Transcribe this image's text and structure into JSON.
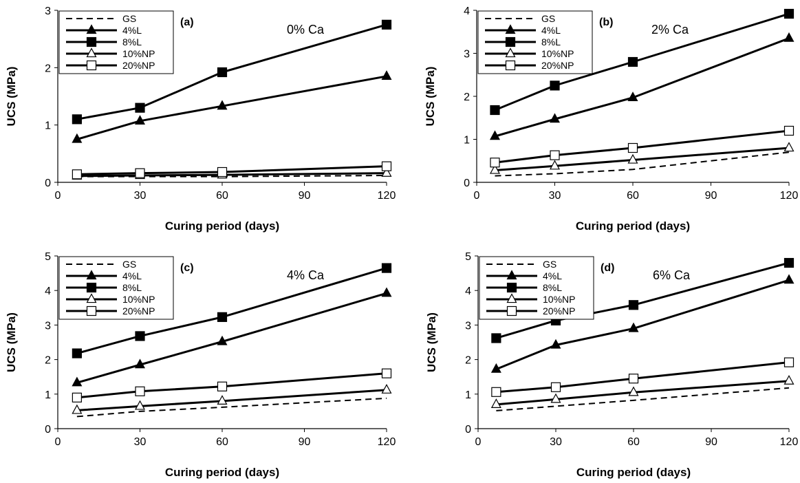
{
  "chart_data": [
    {
      "type": "line",
      "panel_label": "(a)",
      "annotation": "0% Ca",
      "xlabel": "Curing period (days)",
      "ylabel": "UCS (MPa)",
      "xlim": [
        0,
        120
      ],
      "xticks": [
        0,
        30,
        60,
        90,
        120
      ],
      "ylim": [
        0,
        3
      ],
      "yticks": [
        0,
        1,
        2,
        3
      ],
      "x": [
        7,
        30,
        60,
        120
      ],
      "series": [
        {
          "name": "GS",
          "marker": "none",
          "dash": true,
          "values": [
            0.1,
            0.1,
            0.1,
            0.12
          ]
        },
        {
          "name": "4%L",
          "marker": "triangle-filled",
          "values": [
            0.75,
            1.07,
            1.33,
            1.85
          ]
        },
        {
          "name": "8%L",
          "marker": "square-filled",
          "values": [
            1.1,
            1.3,
            1.92,
            2.75
          ]
        },
        {
          "name": "10%NP",
          "marker": "triangle-open",
          "values": [
            0.11,
            0.12,
            0.13,
            0.16
          ]
        },
        {
          "name": "20%NP",
          "marker": "square-open",
          "values": [
            0.14,
            0.16,
            0.18,
            0.28
          ]
        }
      ],
      "legend_position": "top-left"
    },
    {
      "type": "line",
      "panel_label": "(b)",
      "annotation": "2% Ca",
      "xlabel": "Curing period (days)",
      "ylabel": "UCS (MPa)",
      "xlim": [
        0,
        120
      ],
      "xticks": [
        0,
        30,
        60,
        90,
        120
      ],
      "ylim": [
        0,
        4
      ],
      "yticks": [
        0,
        1,
        2,
        3,
        4
      ],
      "x": [
        7,
        30,
        60,
        120
      ],
      "series": [
        {
          "name": "GS",
          "marker": "none",
          "dash": true,
          "values": [
            0.15,
            0.2,
            0.3,
            0.7
          ]
        },
        {
          "name": "4%L",
          "marker": "triangle-filled",
          "values": [
            1.07,
            1.47,
            1.97,
            3.35
          ]
        },
        {
          "name": "8%L",
          "marker": "square-filled",
          "values": [
            1.68,
            2.25,
            2.8,
            3.92
          ]
        },
        {
          "name": "10%NP",
          "marker": "triangle-open",
          "values": [
            0.28,
            0.38,
            0.52,
            0.8
          ]
        },
        {
          "name": "20%NP",
          "marker": "square-open",
          "values": [
            0.46,
            0.63,
            0.8,
            1.2
          ]
        }
      ],
      "legend_position": "top-left"
    },
    {
      "type": "line",
      "panel_label": "(c)",
      "annotation": "4% Ca",
      "xlabel": "Curing period (days)",
      "ylabel": "UCS (MPa)",
      "xlim": [
        0,
        120
      ],
      "xticks": [
        0,
        30,
        60,
        90,
        120
      ],
      "ylim": [
        0,
        5
      ],
      "yticks": [
        0,
        1,
        2,
        3,
        4,
        5
      ],
      "x": [
        7,
        30,
        60,
        120
      ],
      "series": [
        {
          "name": "GS",
          "marker": "none",
          "dash": true,
          "values": [
            0.35,
            0.5,
            0.62,
            0.88
          ]
        },
        {
          "name": "4%L",
          "marker": "triangle-filled",
          "values": [
            1.33,
            1.85,
            2.52,
            3.92
          ]
        },
        {
          "name": "8%L",
          "marker": "square-filled",
          "values": [
            2.18,
            2.68,
            3.23,
            4.65
          ]
        },
        {
          "name": "10%NP",
          "marker": "triangle-open",
          "values": [
            0.53,
            0.65,
            0.8,
            1.12
          ]
        },
        {
          "name": "20%NP",
          "marker": "square-open",
          "values": [
            0.9,
            1.08,
            1.22,
            1.6
          ]
        }
      ],
      "legend_position": "top-left"
    },
    {
      "type": "line",
      "panel_label": "(d)",
      "annotation": "6% Ca",
      "xlabel": "Curing period (days)",
      "ylabel": "UCS (MPa)",
      "xlim": [
        0,
        120
      ],
      "xticks": [
        0,
        30,
        60,
        90,
        120
      ],
      "ylim": [
        0,
        5
      ],
      "yticks": [
        0,
        1,
        2,
        3,
        4,
        5
      ],
      "x": [
        7,
        30,
        60,
        120
      ],
      "series": [
        {
          "name": "GS",
          "marker": "none",
          "dash": true,
          "values": [
            0.52,
            0.65,
            0.82,
            1.18
          ]
        },
        {
          "name": "4%L",
          "marker": "triangle-filled",
          "values": [
            1.72,
            2.42,
            2.9,
            4.3
          ]
        },
        {
          "name": "8%L",
          "marker": "square-filled",
          "values": [
            2.62,
            3.13,
            3.58,
            4.8
          ]
        },
        {
          "name": "10%NP",
          "marker": "triangle-open",
          "values": [
            0.7,
            0.85,
            1.05,
            1.38
          ]
        },
        {
          "name": "20%NP",
          "marker": "square-open",
          "values": [
            1.06,
            1.2,
            1.45,
            1.92
          ]
        }
      ],
      "legend_position": "top-left"
    }
  ]
}
